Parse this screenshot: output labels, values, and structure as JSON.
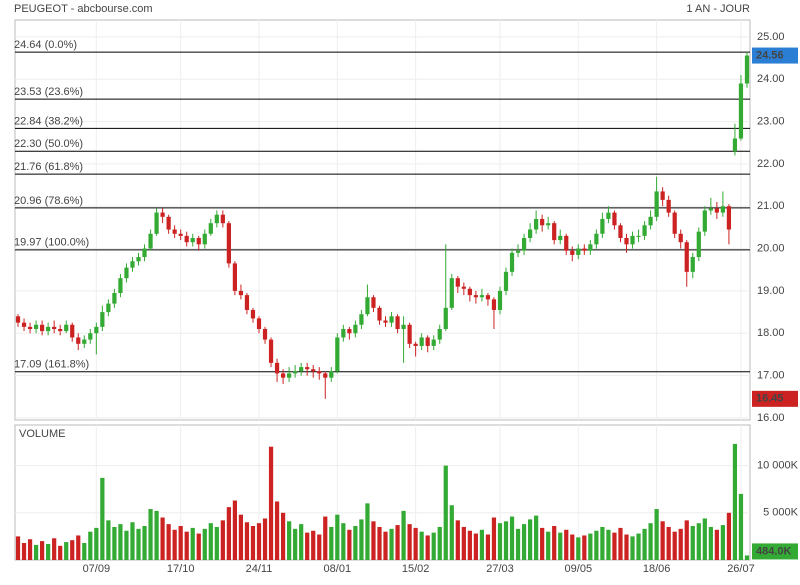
{
  "chart_data": {
    "type": "candlestick",
    "title": "PEUGEOT - abcbourse.com",
    "period": "1 AN - JOUR",
    "categories": [
      null,
      null,
      null,
      null,
      null,
      null,
      null,
      null,
      null,
      null,
      null,
      null,
      null,
      "07/09",
      null,
      null,
      null,
      null,
      null,
      null,
      null,
      null,
      null,
      null,
      null,
      null,
      null,
      "17/10",
      null,
      null,
      null,
      null,
      null,
      null,
      null,
      null,
      null,
      null,
      null,
      null,
      "24/11",
      null,
      null,
      null,
      null,
      null,
      null,
      null,
      null,
      null,
      null,
      null,
      null,
      "08/01",
      null,
      null,
      null,
      null,
      null,
      null,
      null,
      null,
      null,
      null,
      null,
      null,
      "15/02",
      null,
      null,
      null,
      null,
      null,
      null,
      null,
      null,
      null,
      null,
      null,
      null,
      null,
      "27/03",
      null,
      null,
      null,
      null,
      null,
      null,
      null,
      null,
      null,
      null,
      null,
      null,
      "09/05",
      null,
      null,
      null,
      null,
      null,
      null,
      null,
      null,
      null,
      null,
      null,
      null,
      "18/06",
      null,
      null,
      null,
      null,
      null,
      null,
      null,
      null,
      null,
      null,
      null,
      null,
      null,
      "26/07",
      null
    ],
    "ohlc": [
      [
        18.4,
        18.45,
        18.15,
        18.25
      ],
      [
        18.25,
        18.35,
        18.05,
        18.15
      ],
      [
        18.15,
        18.25,
        18.0,
        18.1
      ],
      [
        18.1,
        18.3,
        18.0,
        18.2
      ],
      [
        18.2,
        18.3,
        17.95,
        18.05
      ],
      [
        18.05,
        18.25,
        17.95,
        18.15
      ],
      [
        18.15,
        18.3,
        18.0,
        18.1
      ],
      [
        18.1,
        18.2,
        17.95,
        18.05
      ],
      [
        18.05,
        18.3,
        18.0,
        18.2
      ],
      [
        18.2,
        18.25,
        17.8,
        17.9
      ],
      [
        17.9,
        18.0,
        17.6,
        17.75
      ],
      [
        17.75,
        17.95,
        17.65,
        17.85
      ],
      [
        17.85,
        18.1,
        17.75,
        18.0
      ],
      [
        18.0,
        18.25,
        17.5,
        18.15
      ],
      [
        18.15,
        18.65,
        18.05,
        18.5
      ],
      [
        18.5,
        18.8,
        18.4,
        18.7
      ],
      [
        18.7,
        19.05,
        18.6,
        18.95
      ],
      [
        18.95,
        19.4,
        18.85,
        19.3
      ],
      [
        19.3,
        19.65,
        19.2,
        19.55
      ],
      [
        19.55,
        19.8,
        19.45,
        19.7
      ],
      [
        19.7,
        19.9,
        19.6,
        19.8
      ],
      [
        19.8,
        20.1,
        19.7,
        20.0
      ],
      [
        20.0,
        20.45,
        19.95,
        20.35
      ],
      [
        20.35,
        20.95,
        20.3,
        20.85
      ],
      [
        20.85,
        20.95,
        20.6,
        20.75
      ],
      [
        20.75,
        20.8,
        20.35,
        20.45
      ],
      [
        20.45,
        20.55,
        20.25,
        20.35
      ],
      [
        20.35,
        20.45,
        20.2,
        20.3
      ],
      [
        20.3,
        20.4,
        20.05,
        20.15
      ],
      [
        20.15,
        20.35,
        20.05,
        20.25
      ],
      [
        20.25,
        20.3,
        19.95,
        20.1
      ],
      [
        20.1,
        20.45,
        20.0,
        20.35
      ],
      [
        20.35,
        20.7,
        20.3,
        20.6
      ],
      [
        20.6,
        20.9,
        20.5,
        20.8
      ],
      [
        20.8,
        20.9,
        20.5,
        20.6
      ],
      [
        20.6,
        20.65,
        19.55,
        19.65
      ],
      [
        19.65,
        19.7,
        18.9,
        19.0
      ],
      [
        19.0,
        19.15,
        18.8,
        18.9
      ],
      [
        18.9,
        18.95,
        18.45,
        18.55
      ],
      [
        18.55,
        18.6,
        18.25,
        18.35
      ],
      [
        18.35,
        18.4,
        18.0,
        18.1
      ],
      [
        18.1,
        18.15,
        17.75,
        17.85
      ],
      [
        17.85,
        17.9,
        17.2,
        17.3
      ],
      [
        17.3,
        17.4,
        16.85,
        17.05
      ],
      [
        17.05,
        17.15,
        16.8,
        16.95
      ],
      [
        16.95,
        17.2,
        16.85,
        17.05
      ],
      [
        17.05,
        17.25,
        16.95,
        17.1
      ],
      [
        17.1,
        17.3,
        17.0,
        17.2
      ],
      [
        17.2,
        17.3,
        17.0,
        17.15
      ],
      [
        17.15,
        17.25,
        16.95,
        17.1
      ],
      [
        17.1,
        17.2,
        16.9,
        17.05
      ],
      [
        17.05,
        17.1,
        16.45,
        16.95
      ],
      [
        16.95,
        17.2,
        16.85,
        17.1
      ],
      [
        17.1,
        18.0,
        17.05,
        17.9
      ],
      [
        17.9,
        18.2,
        17.8,
        18.1
      ],
      [
        18.1,
        18.15,
        17.85,
        18.0
      ],
      [
        18.0,
        18.3,
        17.9,
        18.2
      ],
      [
        18.2,
        18.55,
        18.1,
        18.45
      ],
      [
        18.45,
        19.15,
        18.4,
        18.85
      ],
      [
        18.85,
        18.9,
        18.5,
        18.6
      ],
      [
        18.6,
        18.65,
        18.2,
        18.3
      ],
      [
        18.3,
        18.4,
        18.15,
        18.25
      ],
      [
        18.25,
        18.5,
        18.15,
        18.4
      ],
      [
        18.4,
        18.45,
        18.0,
        18.1
      ],
      [
        18.1,
        18.4,
        17.3,
        18.2
      ],
      [
        18.2,
        18.25,
        17.65,
        17.75
      ],
      [
        17.75,
        17.8,
        17.45,
        17.7
      ],
      [
        17.7,
        18.0,
        17.6,
        17.9
      ],
      [
        17.9,
        17.95,
        17.55,
        17.7
      ],
      [
        17.7,
        17.95,
        17.6,
        17.85
      ],
      [
        17.85,
        18.2,
        17.75,
        18.1
      ],
      [
        18.1,
        20.1,
        18.05,
        18.6
      ],
      [
        18.6,
        19.4,
        18.55,
        19.3
      ],
      [
        19.3,
        19.35,
        18.95,
        19.1
      ],
      [
        19.1,
        19.2,
        18.9,
        19.05
      ],
      [
        19.05,
        19.1,
        18.75,
        18.9
      ],
      [
        18.9,
        19.0,
        18.7,
        18.85
      ],
      [
        18.85,
        19.05,
        18.75,
        18.9
      ],
      [
        18.9,
        18.95,
        18.65,
        18.8
      ],
      [
        18.8,
        18.85,
        18.1,
        18.55
      ],
      [
        18.55,
        19.1,
        18.45,
        19.0
      ],
      [
        19.0,
        19.55,
        18.9,
        19.45
      ],
      [
        19.45,
        20.0,
        19.35,
        19.9
      ],
      [
        19.9,
        20.1,
        19.8,
        19.95
      ],
      [
        19.95,
        20.35,
        19.85,
        20.25
      ],
      [
        20.25,
        20.6,
        20.15,
        20.45
      ],
      [
        20.45,
        20.9,
        20.35,
        20.7
      ],
      [
        20.7,
        20.8,
        20.4,
        20.55
      ],
      [
        20.55,
        20.75,
        20.45,
        20.6
      ],
      [
        20.6,
        20.65,
        20.1,
        20.2
      ],
      [
        20.2,
        20.45,
        20.1,
        20.3
      ],
      [
        20.3,
        20.35,
        19.85,
        19.95
      ],
      [
        19.95,
        20.05,
        19.7,
        19.85
      ],
      [
        19.85,
        20.1,
        19.75,
        20.0
      ],
      [
        20.0,
        20.1,
        19.85,
        19.95
      ],
      [
        19.95,
        20.2,
        19.85,
        20.1
      ],
      [
        20.1,
        20.45,
        20.0,
        20.35
      ],
      [
        20.35,
        20.85,
        20.25,
        20.7
      ],
      [
        20.7,
        21.0,
        20.6,
        20.85
      ],
      [
        20.85,
        20.9,
        20.45,
        20.55
      ],
      [
        20.55,
        20.6,
        20.15,
        20.25
      ],
      [
        20.25,
        20.35,
        19.9,
        20.1
      ],
      [
        20.1,
        20.4,
        20.0,
        20.3
      ],
      [
        20.3,
        20.45,
        20.15,
        20.3
      ],
      [
        20.3,
        20.65,
        20.2,
        20.55
      ],
      [
        20.55,
        20.9,
        20.45,
        20.75
      ],
      [
        20.75,
        21.7,
        20.65,
        21.35
      ],
      [
        21.35,
        21.45,
        21.0,
        21.15
      ],
      [
        21.15,
        21.25,
        20.75,
        20.85
      ],
      [
        20.85,
        20.9,
        20.25,
        20.35
      ],
      [
        20.35,
        20.45,
        20.0,
        20.15
      ],
      [
        20.15,
        20.2,
        19.1,
        19.45
      ],
      [
        19.45,
        19.9,
        19.3,
        19.8
      ],
      [
        19.8,
        20.5,
        19.7,
        20.4
      ],
      [
        20.4,
        21.0,
        20.3,
        20.9
      ],
      [
        20.9,
        21.2,
        20.8,
        20.95
      ],
      [
        20.95,
        21.1,
        20.7,
        20.85
      ],
      [
        20.85,
        21.35,
        20.75,
        21.0
      ],
      [
        21.0,
        21.05,
        20.1,
        20.45
      ],
      [
        22.3,
        22.95,
        22.2,
        22.6
      ],
      [
        22.6,
        24.1,
        22.55,
        23.9
      ],
      [
        23.9,
        24.64,
        23.8,
        24.56
      ]
    ],
    "up_color": "#33aa33",
    "down_color": "#cc2222",
    "ylim": [
      15.95,
      25.4
    ],
    "yticks": [
      {
        "value": 16,
        "label": "16.00"
      },
      {
        "value": 17,
        "label": "17.00"
      },
      {
        "value": 18,
        "label": "18.00"
      },
      {
        "value": 19,
        "label": "19.00"
      },
      {
        "value": 20,
        "label": "20.00"
      },
      {
        "value": 21,
        "label": "21.00"
      },
      {
        "value": 22,
        "label": "22.00"
      },
      {
        "value": 23,
        "label": "23.00"
      },
      {
        "value": 24,
        "label": "24.00"
      },
      {
        "value": 25,
        "label": "25.00"
      }
    ],
    "grid": true,
    "fib_levels": [
      {
        "value": 24.64,
        "label": "24.64 (0.0%)"
      },
      {
        "value": 23.53,
        "label": "23.53 (23.6%)"
      },
      {
        "value": 22.84,
        "label": "22.84 (38.2%)"
      },
      {
        "value": 22.3,
        "label": "22.30 (50.0%)"
      },
      {
        "value": 21.76,
        "label": "21.76 (61.8%)"
      },
      {
        "value": 20.96,
        "label": "20.96 (78.6%)"
      },
      {
        "value": 19.97,
        "label": "19.97 (100.0%)"
      },
      {
        "value": 17.09,
        "label": "17.09 (161.8%)"
      }
    ],
    "last_price": 24.56,
    "last_price_color": "#2a7fd4",
    "low_price": 16.45,
    "low_price_color": "#cc2222",
    "volume": {
      "label": "VOLUME",
      "label_color": "#33aa33",
      "values": [
        2500,
        1800,
        2200,
        1600,
        2000,
        1700,
        2300,
        1500,
        1900,
        2100,
        2600,
        1800,
        3000,
        3400,
        8700,
        4200,
        3500,
        3800,
        3100,
        4000,
        3300,
        3600,
        5400,
        5200,
        4500,
        3800,
        3200,
        3600,
        3000,
        3400,
        2800,
        3300,
        3900,
        3500,
        4200,
        5600,
        6300,
        4800,
        4000,
        3600,
        3900,
        4400,
        12000,
        6200,
        5000,
        4100,
        3300,
        3800,
        2900,
        3100,
        2700,
        4600,
        3500,
        4800,
        3900,
        3200,
        3600,
        4300,
        6000,
        4100,
        3500,
        3000,
        3300,
        3700,
        5200,
        3800,
        3400,
        3000,
        2600,
        2900,
        3500,
        10000,
        5800,
        4200,
        3500,
        3100,
        2800,
        3200,
        2700,
        4500,
        3900,
        4100,
        4600,
        3300,
        3800,
        4300,
        4700,
        3400,
        3000,
        3600,
        2900,
        3200,
        2700,
        2400,
        2600,
        2800,
        3100,
        3500,
        3200,
        2900,
        3400,
        2700,
        2500,
        2800,
        3300,
        3900,
        5400,
        4100,
        3500,
        3000,
        3300,
        4200,
        3600,
        3900,
        4400,
        3500,
        3200,
        3700,
        5000,
        12300,
        7000,
        484
      ],
      "ylim": [
        0,
        14300
      ],
      "yticks": [
        {
          "value": 5000,
          "label": "5 000K"
        },
        {
          "value": 10000,
          "label": "10 000K"
        }
      ],
      "last": {
        "value": 484,
        "label": "484.0K"
      },
      "last_color": "#33aa33"
    }
  }
}
